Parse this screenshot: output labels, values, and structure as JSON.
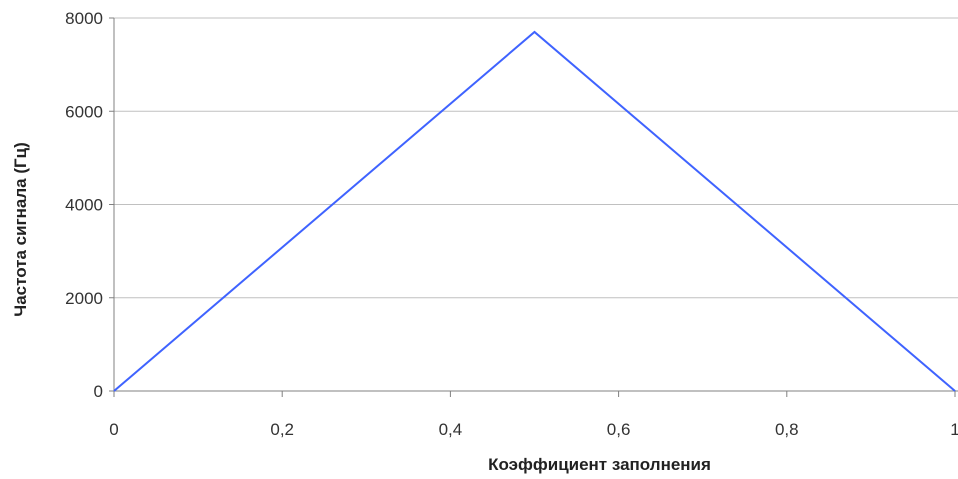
{
  "chart_data": {
    "type": "line",
    "xlabel": "Коэффициент заполнения",
    "ylabel": "Частота сигнала (Гц)",
    "xlim": [
      0,
      1
    ],
    "ylim": [
      0,
      8000
    ],
    "x_ticks": [
      0,
      0.2,
      0.4,
      0.6,
      0.8,
      1
    ],
    "x_tick_labels": [
      "0",
      "0,2",
      "0,4",
      "0,6",
      "0,8",
      "1"
    ],
    "y_ticks": [
      0,
      2000,
      4000,
      6000,
      8000
    ],
    "y_tick_labels": [
      "0",
      "2000",
      "4000",
      "6000",
      "8000"
    ],
    "grid": "horizontal",
    "series": [
      {
        "color": "#3f63ff",
        "x": [
          0,
          0.5,
          1
        ],
        "y": [
          0,
          7700,
          0
        ]
      }
    ]
  }
}
